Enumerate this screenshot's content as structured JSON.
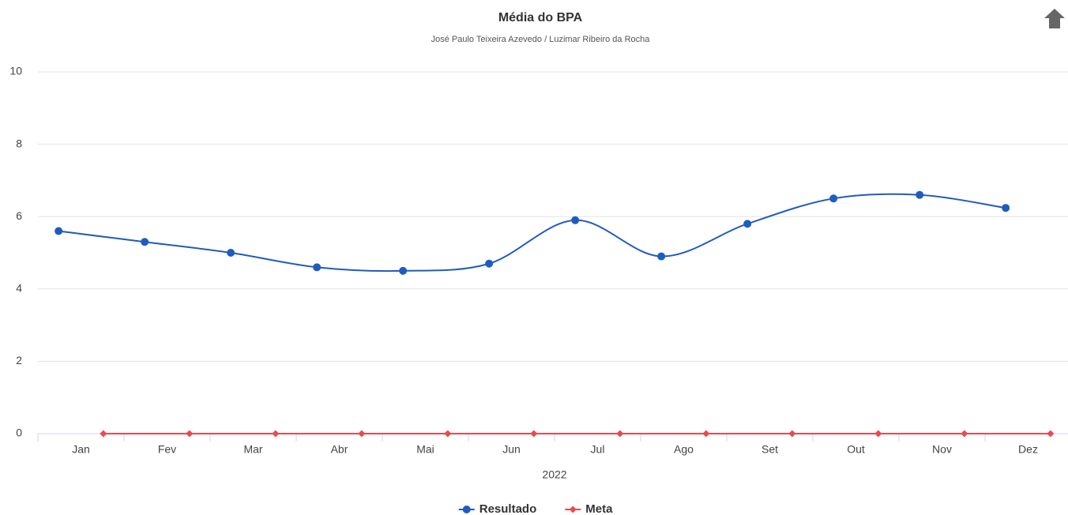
{
  "chart_data": {
    "type": "line",
    "title": "Média do BPA",
    "subtitle": "José Paulo Teixeira Azevedo / Luzimar Ribeiro da Rocha",
    "x_axis_label": "2022",
    "categories": [
      "Jan",
      "Fev",
      "Mar",
      "Abr",
      "Mai",
      "Jun",
      "Jul",
      "Ago",
      "Set",
      "Out",
      "Nov",
      "Dez"
    ],
    "series": [
      {
        "name": "Resultado",
        "color": "#1f5cbf",
        "marker": "circle",
        "smooth": true,
        "values": [
          5.6,
          5.3,
          5.0,
          4.6,
          4.5,
          4.7,
          5.9,
          4.9,
          5.8,
          6.5,
          6.6,
          6.24
        ]
      },
      {
        "name": "Meta",
        "color": "#e84a50",
        "marker": "diamond",
        "smooth": false,
        "values": [
          0,
          0,
          0,
          0,
          0,
          0,
          0,
          0,
          0,
          0,
          0,
          0
        ]
      }
    ],
    "ylim": [
      0,
      10
    ],
    "yticks": [
      0,
      2,
      4,
      6,
      8,
      10
    ],
    "grid": true,
    "legend": "bottom"
  }
}
